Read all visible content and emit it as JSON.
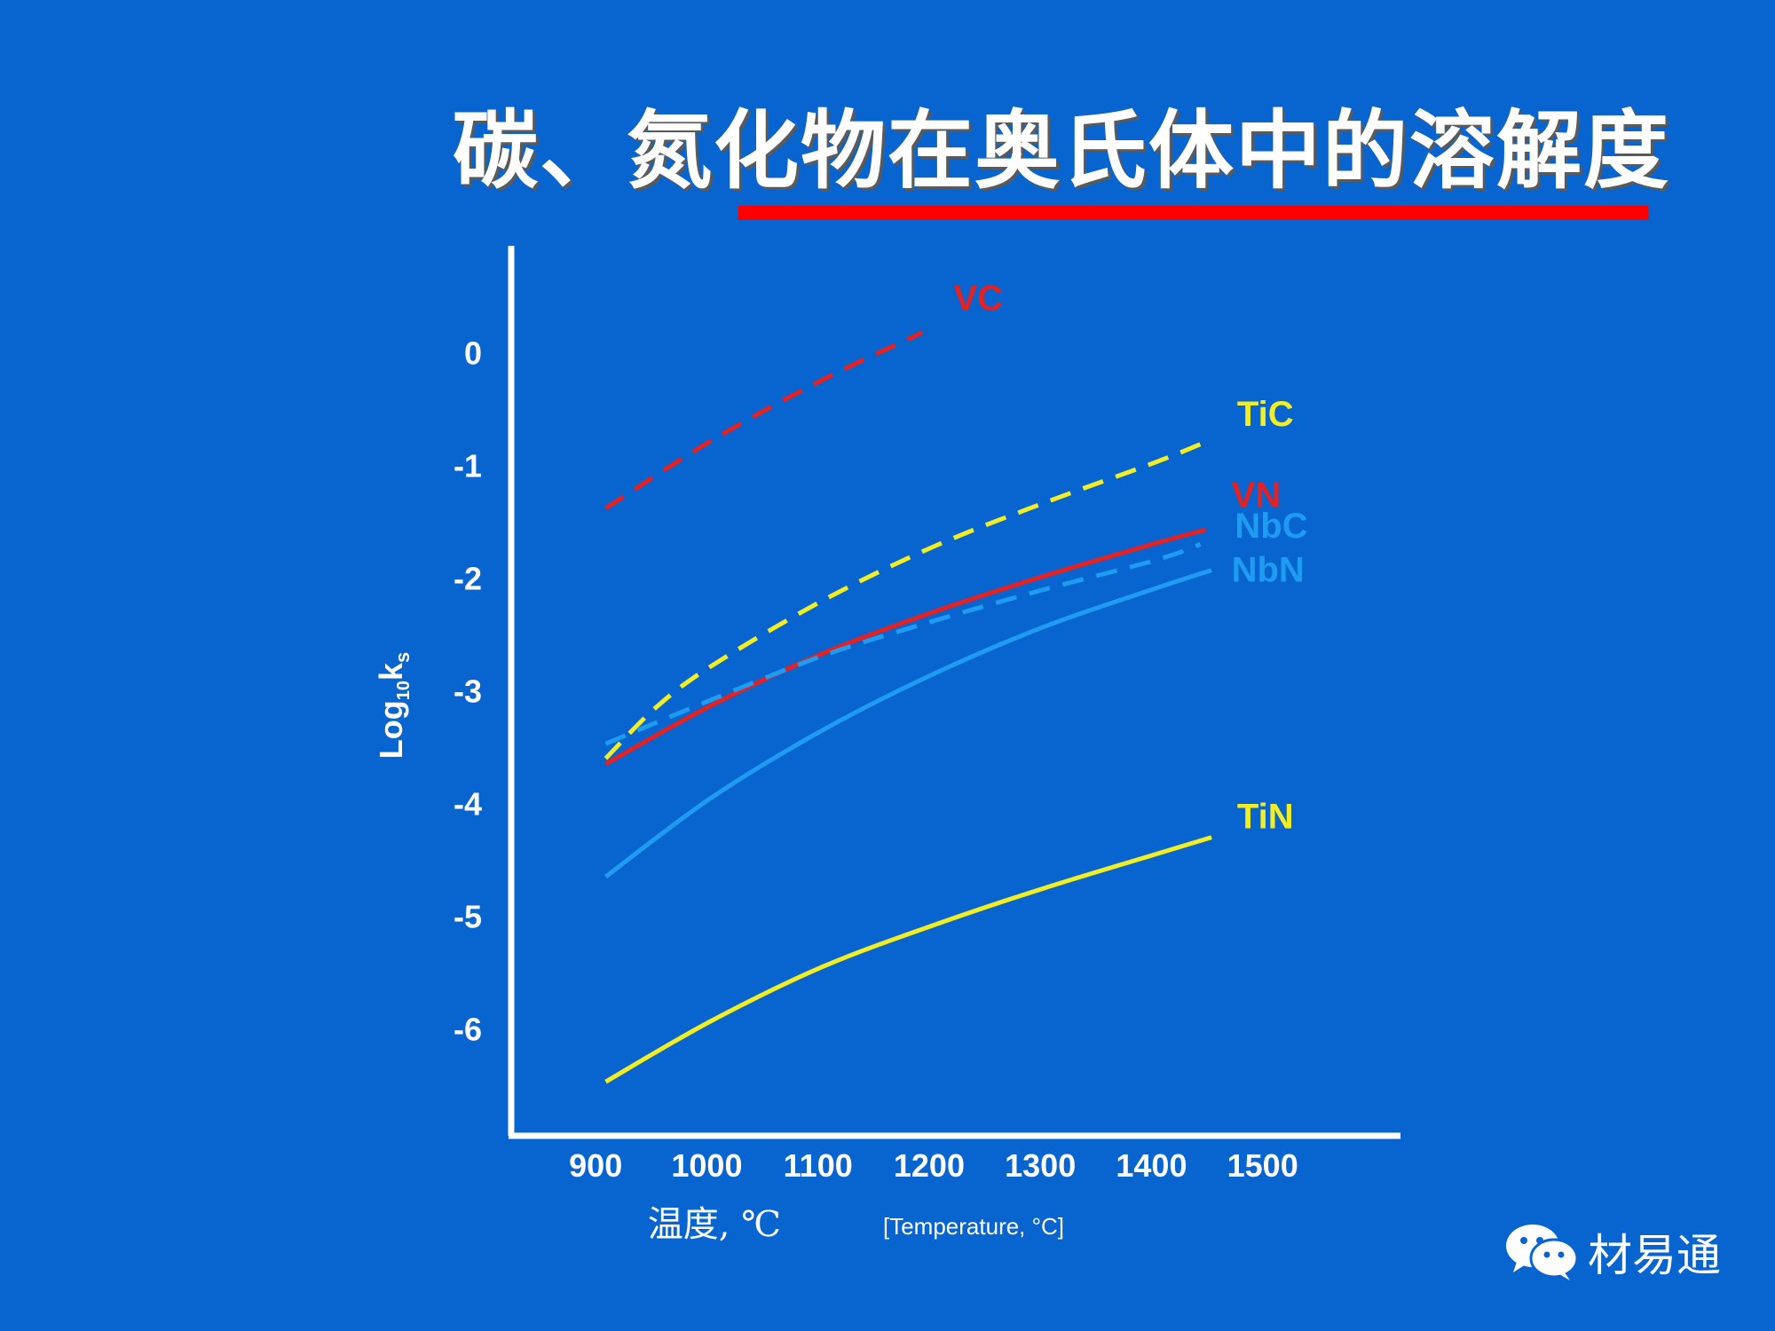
{
  "page": {
    "title": "碳、氮化物在奥氏体中的溶解度",
    "watermark": "材易通",
    "accent_color": "#ff0000",
    "background_color": "#0864cf"
  },
  "chart_data": {
    "type": "line",
    "title": "碳、氮化物在奥氏体中的溶解度",
    "xlabel": "温度, ℃",
    "xlabel_sub": "[Temperature, °C]",
    "ylabel_base": "Log",
    "ylabel_sub": "10",
    "ylabel_k": "k",
    "ylabel_ksub": "s",
    "xlim": [
      820,
      1620
    ],
    "ylim": [
      -6.95,
      0.95
    ],
    "xticks": [
      {
        "value": 900,
        "label": "900"
      },
      {
        "value": 1000,
        "label": "1000"
      },
      {
        "value": 1100,
        "label": "1100"
      },
      {
        "value": 1200,
        "label": "1200"
      },
      {
        "value": 1300,
        "label": "1300"
      },
      {
        "value": 1400,
        "label": "1400"
      },
      {
        "value": 1500,
        "label": "1500"
      }
    ],
    "yticks": [
      {
        "value": 0,
        "label": "0"
      },
      {
        "value": -1,
        "label": "-1"
      },
      {
        "value": -2,
        "label": "-2"
      },
      {
        "value": -3,
        "label": "-3"
      },
      {
        "value": -4,
        "label": "-4"
      },
      {
        "value": -5,
        "label": "-5"
      },
      {
        "value": -6,
        "label": "-6"
      }
    ],
    "series": [
      {
        "name": "VC",
        "color": "#e82020",
        "dash": true,
        "x": [
          905,
          1000,
          1100,
          1190
        ],
        "y": [
          -1.38,
          -0.78,
          -0.24,
          0.18
        ],
        "label_at": {
          "x": 1218,
          "y": 0.38
        }
      },
      {
        "name": "TiC",
        "color": "#f2ee22",
        "dash": true,
        "x": [
          905,
          950,
          1000,
          1100,
          1200,
          1300,
          1400,
          1450
        ],
        "y": [
          -3.6,
          -3.15,
          -2.78,
          -2.2,
          -1.72,
          -1.33,
          -0.97,
          -0.77
        ],
        "label_at": {
          "x": 1473,
          "y": -0.65
        }
      },
      {
        "name": "VN",
        "color": "#e82020",
        "dash": false,
        "x": [
          905,
          1000,
          1100,
          1200,
          1300,
          1400,
          1445
        ],
        "y": [
          -3.65,
          -3.13,
          -2.67,
          -2.3,
          -1.98,
          -1.69,
          -1.57
        ],
        "label_at": {
          "x": 1468,
          "y": -1.37
        }
      },
      {
        "name": "NbC",
        "color": "#1e9cf2",
        "dash": true,
        "x": [
          905,
          1000,
          1100,
          1200,
          1300,
          1400,
          1440
        ],
        "y": [
          -3.47,
          -3.08,
          -2.69,
          -2.38,
          -2.1,
          -1.84,
          -1.7
        ],
        "label_at": {
          "x": 1471,
          "y": -1.64
        }
      },
      {
        "name": "NbN",
        "color": "#1e9cf2",
        "dash": false,
        "x": [
          905,
          1000,
          1100,
          1200,
          1300,
          1400,
          1450
        ],
        "y": [
          -4.65,
          -3.95,
          -3.35,
          -2.85,
          -2.43,
          -2.09,
          -1.93
        ],
        "label_at": {
          "x": 1468,
          "y": -2.03
        }
      },
      {
        "name": "TiN",
        "color": "#f2ee22",
        "dash": false,
        "x": [
          905,
          1000,
          1100,
          1200,
          1300,
          1400,
          1450
        ],
        "y": [
          -6.47,
          -5.93,
          -5.45,
          -5.08,
          -4.75,
          -4.45,
          -4.3
        ],
        "label_at": {
          "x": 1473,
          "y": -4.22
        }
      }
    ]
  }
}
